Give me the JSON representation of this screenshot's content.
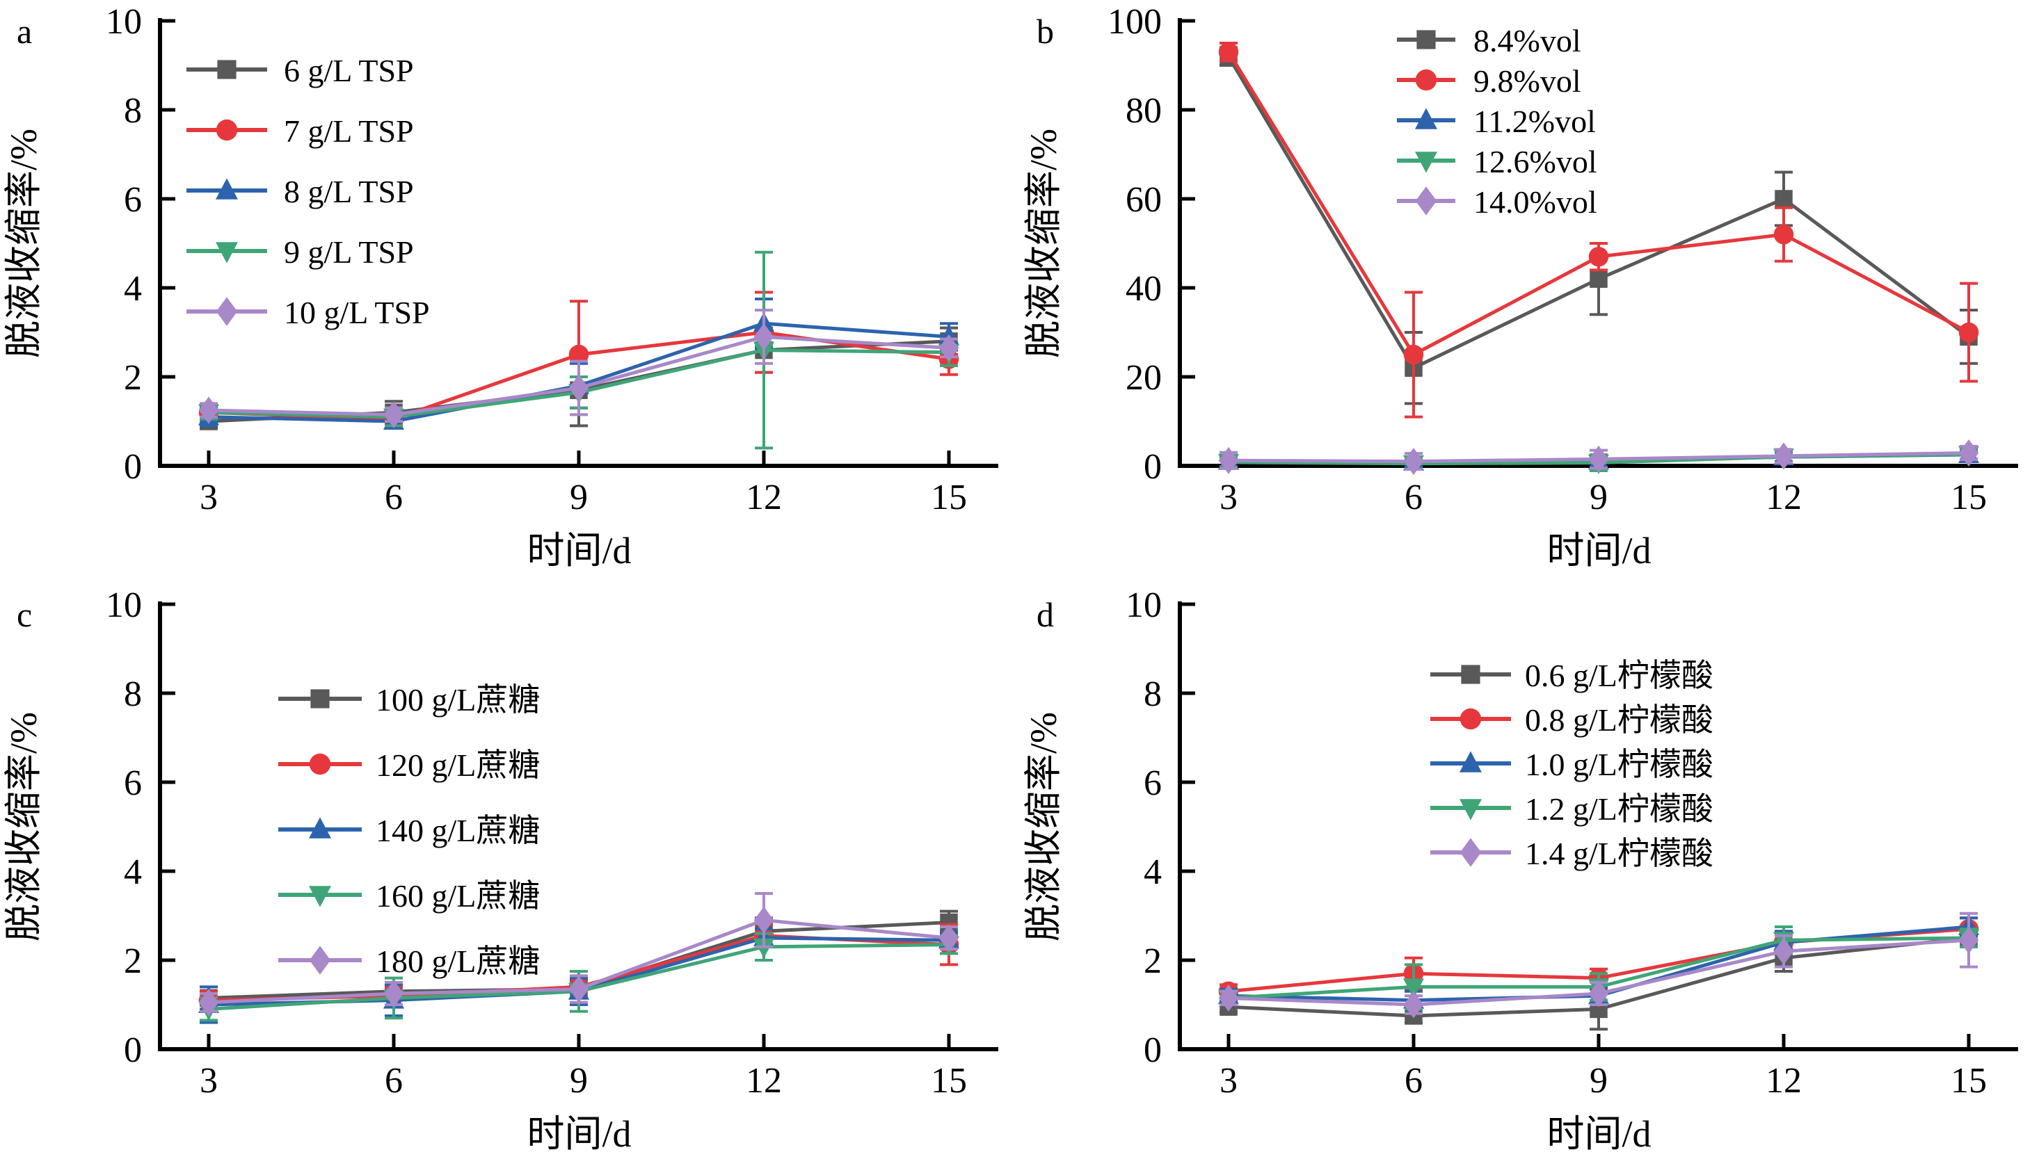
{
  "figure": {
    "xlabel": "时间/d",
    "ylabel": "脱液收缩率/%"
  },
  "palette": {
    "gray": "#595959",
    "red": "#e6383c",
    "blue": "#2d63ad",
    "green": "#3fa577",
    "purple": "#a888c9",
    "axis": "#000000"
  },
  "chart_data": [
    {
      "id": "a",
      "type": "line",
      "panel_label": "a",
      "xlabel": "时间/d",
      "ylabel": "脱液收缩率/%",
      "x": [
        3,
        6,
        9,
        12,
        15
      ],
      "ylim": [
        0,
        10
      ],
      "yticks": [
        0,
        2,
        4,
        6,
        8,
        10
      ],
      "legend_position": "top-left",
      "grid": false,
      "series": [
        {
          "name": "6 g/L TSP",
          "color": "#595959",
          "marker": "square",
          "values": [
            1.0,
            1.2,
            1.7,
            2.6,
            2.8
          ],
          "errors": [
            0.15,
            0.25,
            0.8,
            0.5,
            0.3
          ]
        },
        {
          "name": "7 g/L TSP",
          "color": "#e6383c",
          "marker": "circle",
          "values": [
            1.2,
            1.05,
            2.5,
            3.0,
            2.4
          ],
          "errors": [
            0.12,
            0.2,
            1.2,
            0.9,
            0.35
          ]
        },
        {
          "name": "8 g/L TSP",
          "color": "#2d63ad",
          "marker": "triangle-up",
          "values": [
            1.1,
            1.0,
            1.8,
            3.2,
            2.9
          ],
          "errors": [
            0.2,
            0.15,
            0.5,
            0.55,
            0.3
          ]
        },
        {
          "name": "9 g/L TSP",
          "color": "#3fa577",
          "marker": "triangle-down",
          "values": [
            1.2,
            1.1,
            1.65,
            2.6,
            2.55
          ],
          "errors": [
            0.15,
            0.2,
            0.35,
            2.2,
            0.3
          ]
        },
        {
          "name": "10 g/L TSP",
          "color": "#a888c9",
          "marker": "diamond",
          "values": [
            1.25,
            1.15,
            1.75,
            2.9,
            2.65
          ],
          "errors": [
            0.15,
            0.15,
            0.6,
            0.6,
            0.2
          ]
        }
      ]
    },
    {
      "id": "b",
      "type": "line",
      "panel_label": "b",
      "xlabel": "时间/d",
      "ylabel": "脱液收缩率/%",
      "x": [
        3,
        6,
        9,
        12,
        15
      ],
      "ylim": [
        0,
        100
      ],
      "yticks": [
        0,
        20,
        40,
        60,
        80,
        100
      ],
      "legend_position": "top-center",
      "grid": false,
      "series": [
        {
          "name": "8.4%vol",
          "color": "#595959",
          "marker": "square",
          "values": [
            92,
            22,
            42,
            60,
            29
          ],
          "errors": [
            2,
            8,
            8,
            6,
            6
          ]
        },
        {
          "name": "9.8%vol",
          "color": "#e6383c",
          "marker": "circle",
          "values": [
            93,
            25,
            47,
            52,
            30
          ],
          "errors": [
            2,
            14,
            3,
            6,
            11
          ]
        },
        {
          "name": "11.2%vol",
          "color": "#2d63ad",
          "marker": "triangle-up",
          "values": [
            1.0,
            0.8,
            1.0,
            2.0,
            2.5
          ],
          "errors": [
            1.2,
            1.0,
            1.2,
            1.0,
            1.0
          ]
        },
        {
          "name": "12.6%vol",
          "color": "#3fa577",
          "marker": "triangle-down",
          "values": [
            0.8,
            0.5,
            0.7,
            2.0,
            2.6
          ],
          "errors": [
            1.0,
            1.2,
            1.8,
            1.2,
            1.2
          ]
        },
        {
          "name": "14.0%vol",
          "color": "#a888c9",
          "marker": "diamond",
          "values": [
            1.2,
            1.0,
            1.5,
            2.2,
            2.9
          ],
          "errors": [
            1.8,
            1.8,
            2.0,
            1.5,
            1.5
          ]
        }
      ]
    },
    {
      "id": "c",
      "type": "line",
      "panel_label": "c",
      "xlabel": "时间/d",
      "ylabel": "脱液收缩率/%",
      "x": [
        3,
        6,
        9,
        12,
        15
      ],
      "ylim": [
        0,
        10
      ],
      "yticks": [
        0,
        2,
        4,
        6,
        8,
        10
      ],
      "legend_position": "top-center",
      "grid": false,
      "series": [
        {
          "name": "100 g/L蔗糖",
          "color": "#595959",
          "marker": "square",
          "values": [
            1.15,
            1.3,
            1.35,
            2.65,
            2.85
          ],
          "errors": [
            0.15,
            0.2,
            0.2,
            0.3,
            0.25
          ]
        },
        {
          "name": "120 g/L蔗糖",
          "color": "#e6383c",
          "marker": "circle",
          "values": [
            1.1,
            1.2,
            1.4,
            2.55,
            2.35
          ],
          "errors": [
            0.2,
            0.2,
            0.35,
            0.25,
            0.45
          ]
        },
        {
          "name": "140 g/L蔗糖",
          "color": "#2d63ad",
          "marker": "triangle-up",
          "values": [
            1.0,
            1.1,
            1.3,
            2.5,
            2.45
          ],
          "errors": [
            0.4,
            0.35,
            0.3,
            0.2,
            0.2
          ]
        },
        {
          "name": "160 g/L蔗糖",
          "color": "#3fa577",
          "marker": "triangle-down",
          "values": [
            0.9,
            1.15,
            1.3,
            2.3,
            2.35
          ],
          "errors": [
            0.25,
            0.45,
            0.45,
            0.3,
            0.2
          ]
        },
        {
          "name": "180 g/L蔗糖",
          "color": "#a888c9",
          "marker": "diamond",
          "values": [
            1.05,
            1.25,
            1.35,
            2.9,
            2.5
          ],
          "errors": [
            0.2,
            0.25,
            0.3,
            0.6,
            0.25
          ]
        }
      ]
    },
    {
      "id": "d",
      "type": "line",
      "panel_label": "d",
      "xlabel": "时间/d",
      "ylabel": "脱液收缩率/%",
      "x": [
        3,
        6,
        9,
        12,
        15
      ],
      "ylim": [
        0,
        10
      ],
      "yticks": [
        0,
        2,
        4,
        6,
        8,
        10
      ],
      "legend_position": "top-center",
      "grid": false,
      "series": [
        {
          "name": "0.6 g/L柠檬酸",
          "color": "#595959",
          "marker": "square",
          "values": [
            0.95,
            0.75,
            0.9,
            2.05,
            2.5
          ],
          "errors": [
            0.12,
            0.15,
            0.45,
            0.3,
            0.2
          ]
        },
        {
          "name": "0.8 g/L柠檬酸",
          "color": "#e6383c",
          "marker": "circle",
          "values": [
            1.3,
            1.7,
            1.6,
            2.4,
            2.7
          ],
          "errors": [
            0.15,
            0.35,
            0.2,
            0.25,
            0.25
          ]
        },
        {
          "name": "1.0 g/L柠檬酸",
          "color": "#2d63ad",
          "marker": "triangle-up",
          "values": [
            1.2,
            1.1,
            1.2,
            2.4,
            2.75
          ],
          "errors": [
            0.15,
            0.2,
            0.2,
            0.25,
            0.2
          ]
        },
        {
          "name": "1.2 g/L柠檬酸",
          "color": "#3fa577",
          "marker": "triangle-down",
          "values": [
            1.15,
            1.4,
            1.4,
            2.45,
            2.5
          ],
          "errors": [
            0.15,
            0.5,
            0.3,
            0.3,
            0.2
          ]
        },
        {
          "name": "1.4 g/L柠檬酸",
          "color": "#a888c9",
          "marker": "diamond",
          "values": [
            1.15,
            1.0,
            1.25,
            2.2,
            2.45
          ],
          "errors": [
            0.15,
            0.2,
            0.25,
            0.35,
            0.6
          ]
        }
      ]
    }
  ]
}
